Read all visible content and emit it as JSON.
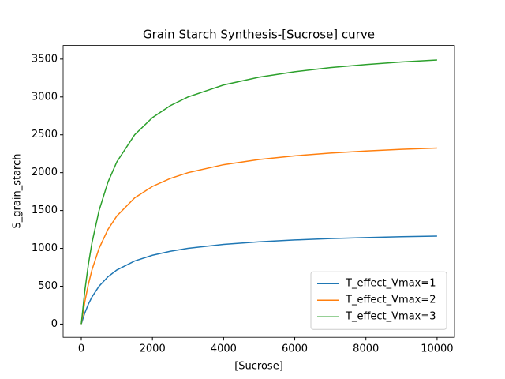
{
  "chart_data": {
    "type": "line",
    "title": "Grain Starch Synthesis-[Sucrose] curve",
    "x_label": "[Sucrose]",
    "y_label": "S_grain_starch",
    "x": [
      0,
      100,
      200,
      300,
      500,
      750,
      1000,
      1500,
      2000,
      2500,
      3000,
      4000,
      5000,
      6000,
      7000,
      8000,
      9000,
      10000
    ],
    "series": [
      {
        "name": "T_effect_Vmax=1",
        "color": "#1f77b4",
        "values": [
          0,
          147.1,
          263.2,
          357.1,
          500,
          625,
          714.3,
          833.3,
          909.1,
          961.5,
          1000,
          1052.6,
          1087.0,
          1111.1,
          1129.0,
          1142.9,
          1153.8,
          1162.8
        ]
      },
      {
        "name": "T_effect_Vmax=2",
        "color": "#ff7f0e",
        "values": [
          0,
          294.2,
          526.3,
          714.3,
          1000,
          1250,
          1428.6,
          1666.7,
          1818.2,
          1923.1,
          2000,
          2105.3,
          2173.9,
          2222.2,
          2258.1,
          2285.7,
          2307.7,
          2325.6
        ]
      },
      {
        "name": "T_effect_Vmax=3",
        "color": "#2ca02c",
        "values": [
          0,
          441.2,
          789.5,
          1071.4,
          1500,
          1875,
          2142.9,
          2500,
          2727.3,
          2884.6,
          3000,
          3157.9,
          3260.9,
          3333.3,
          3387.1,
          3428.6,
          3461.5,
          3488.4
        ]
      }
    ],
    "xlim": [
      -510,
      10490
    ],
    "ylim": [
      -175,
      3680
    ],
    "xticks": [
      0,
      2000,
      4000,
      6000,
      8000,
      10000
    ],
    "yticks": [
      0,
      500,
      1000,
      1500,
      2000,
      2500,
      3000,
      3500
    ],
    "legend": "lower right"
  }
}
